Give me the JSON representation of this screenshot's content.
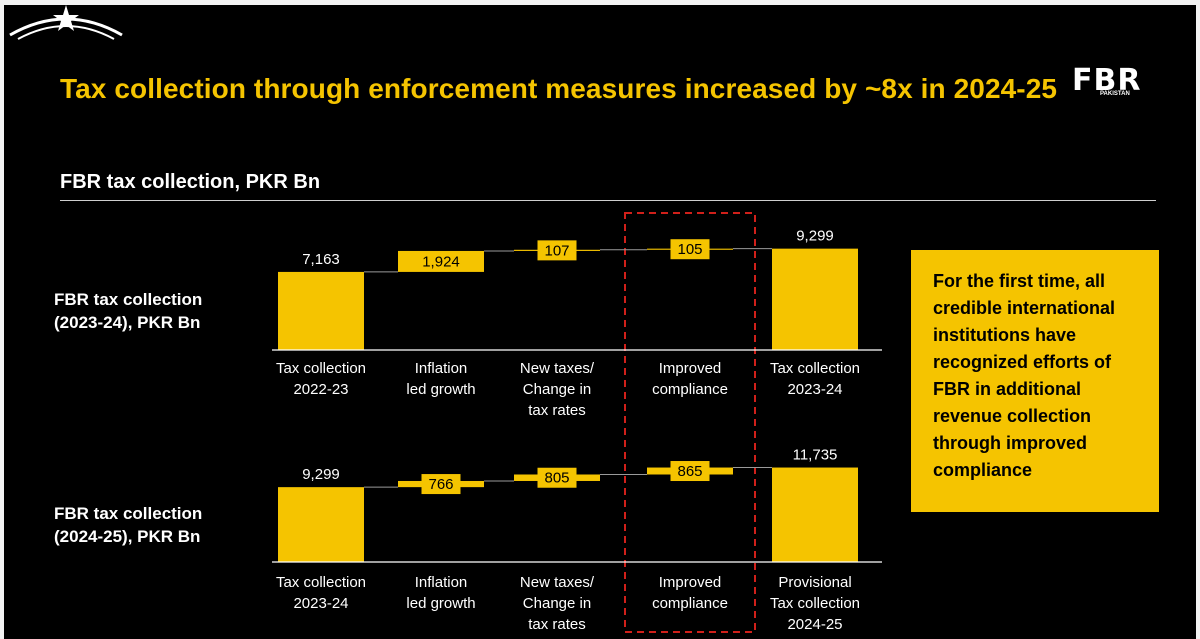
{
  "title": "Tax collection through enforcement measures increased by ~8x in 2024-25",
  "subtitle": "FBR tax collection, PKR Bn",
  "callout": "For the first time, all credible international institutions have recognized efforts of FBR in additional revenue collection through improved compliance",
  "logo": {
    "text": "FBR",
    "subtext": "PAKISTAN",
    "icon": "star-logo-icon"
  },
  "colors": {
    "background": "#000000",
    "accent": "#f5c400",
    "highlight_border": "#d0201a"
  },
  "chart_data": [
    {
      "type": "bar",
      "subtype": "waterfall",
      "title": "FBR tax collection (2023-24), PKR Bn",
      "categories": [
        "Tax collection 2022-23",
        "Inflation led growth",
        "New taxes/ Change in tax rates",
        "Improved compliance",
        "Tax collection 2023-24"
      ],
      "category_lines": [
        [
          "Tax collection",
          "2022-23"
        ],
        [
          "Inflation",
          "led growth"
        ],
        [
          "New taxes/",
          "Change in",
          "tax rates"
        ],
        [
          "Improved",
          "compliance"
        ],
        [
          "Tax collection",
          "2023-24"
        ]
      ],
      "values": [
        7163,
        1924,
        107,
        105,
        9299
      ],
      "labels": [
        "7,163",
        "1,924",
        "107",
        "105",
        "9,299"
      ],
      "kinds": [
        "total",
        "delta",
        "delta",
        "delta",
        "total"
      ],
      "highlight_category": "Improved compliance"
    },
    {
      "type": "bar",
      "subtype": "waterfall",
      "title": "FBR tax collection (2024-25), PKR Bn",
      "categories": [
        "Tax collection 2023-24",
        "Inflation led growth",
        "New taxes/ Change in tax rates",
        "Improved compliance",
        "Provisional Tax collection 2024-25"
      ],
      "category_lines": [
        [
          "Tax collection",
          "2023-24"
        ],
        [
          "Inflation",
          "led growth"
        ],
        [
          "New taxes/",
          "Change in",
          "tax rates"
        ],
        [
          "Improved",
          "compliance"
        ],
        [
          "Provisional",
          "Tax collection",
          "2024-25"
        ]
      ],
      "values": [
        9299,
        766,
        805,
        865,
        11735
      ],
      "labels": [
        "9,299",
        "766",
        "805",
        "865",
        "11,735"
      ],
      "kinds": [
        "total",
        "delta",
        "delta",
        "delta",
        "total"
      ],
      "highlight_category": "Improved compliance"
    }
  ]
}
